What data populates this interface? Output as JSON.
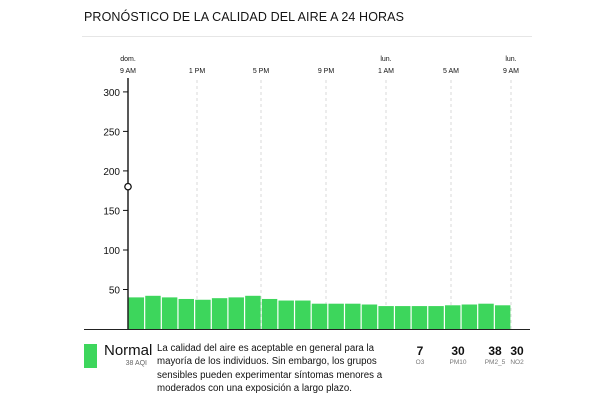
{
  "title": "PRONÓSTICO DE LA CALIDAD DEL AIRE A 24 HORAS",
  "chart_data": {
    "type": "bar",
    "x_day_labels": [
      "dom.",
      "",
      "",
      "",
      "lun.",
      "",
      "lun."
    ],
    "x_tick_labels": [
      "9 AM",
      "1 PM",
      "5 PM",
      "9 PM",
      "1 AM",
      "5 AM",
      "9 AM"
    ],
    "y_tick_labels": [
      "50",
      "100",
      "150",
      "200",
      "250",
      "300"
    ],
    "ylim": [
      0,
      315
    ],
    "values": [
      40,
      42,
      40,
      38,
      37,
      39,
      40,
      42,
      38,
      36,
      36,
      32,
      32,
      32,
      31,
      29,
      29,
      29,
      29,
      30,
      31,
      32,
      30
    ],
    "bar_color": "#3dd65c",
    "current_marker_value": 180,
    "grid": "vertical-dashed"
  },
  "summary": {
    "status_label": "Normal",
    "status_color": "#3dd65c",
    "aqi_text": "38 AQI",
    "description": "La calidad del aire es aceptable en general para la mayoría de los individuos. Sin embargo, los grupos sensibles pueden experimentar síntomas menores a moderados con una exposición a largo plazo.",
    "pollutants": [
      {
        "value": "7",
        "name": "O3"
      },
      {
        "value": "30",
        "name": "PM10"
      },
      {
        "value": "38",
        "name": "PM2_5"
      },
      {
        "value": "30",
        "name": "NO2"
      }
    ]
  }
}
